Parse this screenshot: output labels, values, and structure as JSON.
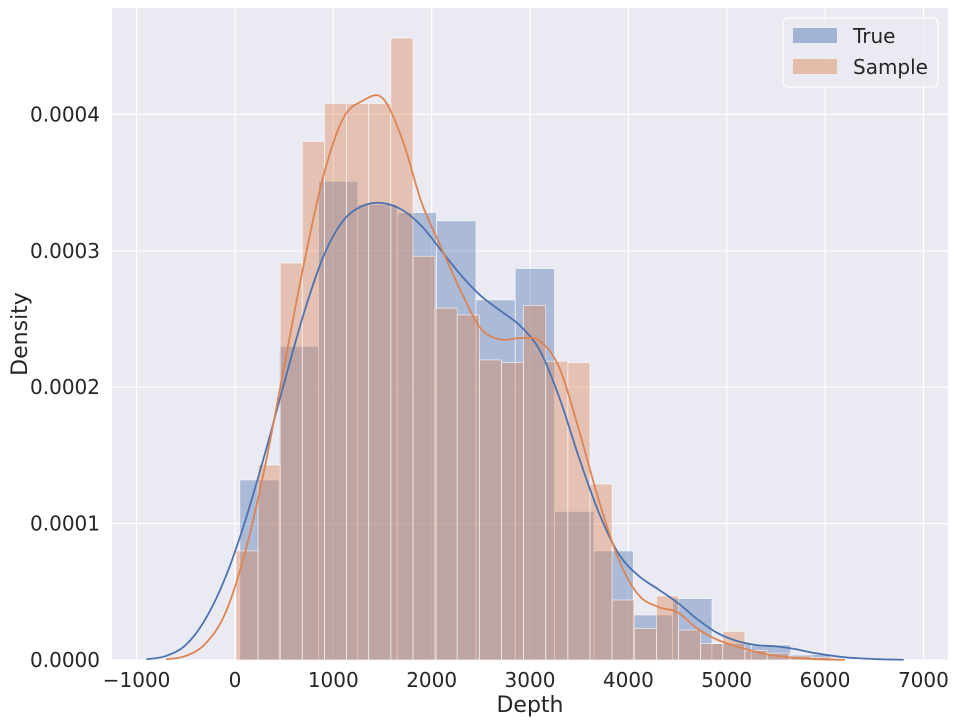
{
  "chart_data": {
    "type": "histogram",
    "xlabel": "Depth",
    "ylabel": "Density",
    "xlim": [
      -1250,
      7250
    ],
    "ylim": [
      0,
      0.000478
    ],
    "xticks": [
      -1000,
      0,
      1000,
      2000,
      3000,
      4000,
      5000,
      6000,
      7000
    ],
    "xtick_labels": [
      "−1000",
      "0",
      "1000",
      "2000",
      "3000",
      "4000",
      "5000",
      "6000",
      "7000"
    ],
    "yticks": [
      0,
      0.0001,
      0.0002,
      0.0003,
      0.0004
    ],
    "ytick_labels": [
      "0.0000",
      "0.0001",
      "0.0002",
      "0.0003",
      "0.0004"
    ],
    "grid": true,
    "legend_position": "top-right",
    "series": [
      {
        "name": "True",
        "color": "#4c72b0",
        "hist_alpha": 0.4,
        "bins": [
          {
            "x0": 50,
            "x1": 450,
            "y": 0.000132
          },
          {
            "x0": 450,
            "x1": 850,
            "y": 0.00023
          },
          {
            "x0": 850,
            "x1": 1250,
            "y": 0.000351
          },
          {
            "x0": 1250,
            "x1": 1650,
            "y": 0.000334
          },
          {
            "x0": 1650,
            "x1": 2050,
            "y": 0.000328
          },
          {
            "x0": 2050,
            "x1": 2450,
            "y": 0.000322
          },
          {
            "x0": 2450,
            "x1": 2850,
            "y": 0.000264
          },
          {
            "x0": 2850,
            "x1": 3250,
            "y": 0.000287
          },
          {
            "x0": 3250,
            "x1": 3650,
            "y": 0.000109
          },
          {
            "x0": 3650,
            "x1": 4050,
            "y": 8e-05
          },
          {
            "x0": 4050,
            "x1": 4450,
            "y": 3.3e-05
          },
          {
            "x0": 4450,
            "x1": 4850,
            "y": 4.5e-05
          },
          {
            "x0": 4850,
            "x1": 5250,
            "y": 1.2e-05
          },
          {
            "x0": 5250,
            "x1": 5650,
            "y": 1.1e-05
          },
          {
            "x0": 5650,
            "x1": 6050,
            "y": 4e-06
          }
        ],
        "kde": [
          [
            -900,
            5e-07
          ],
          [
            -700,
            3e-06
          ],
          [
            -500,
            1.1e-05
          ],
          [
            -300,
            3e-05
          ],
          [
            -100,
            6e-05
          ],
          [
            100,
            0.000101
          ],
          [
            300,
            0.00015
          ],
          [
            500,
            0.000203
          ],
          [
            700,
            0.000254
          ],
          [
            900,
            0.000296
          ],
          [
            1100,
            0.000322
          ],
          [
            1300,
            0.000333
          ],
          [
            1500,
            0.000335
          ],
          [
            1700,
            0.00033
          ],
          [
            1900,
            0.000318
          ],
          [
            2100,
            0.0003
          ],
          [
            2300,
            0.000282
          ],
          [
            2500,
            0.000267
          ],
          [
            2700,
            0.000256
          ],
          [
            2900,
            0.000245
          ],
          [
            3100,
            0.000227
          ],
          [
            3300,
            0.000192
          ],
          [
            3500,
            0.000148
          ],
          [
            3700,
            0.000108
          ],
          [
            3900,
            7.8e-05
          ],
          [
            4100,
            6.2e-05
          ],
          [
            4300,
            5.2e-05
          ],
          [
            4500,
            4.2e-05
          ],
          [
            4700,
            3e-05
          ],
          [
            4900,
            2e-05
          ],
          [
            5100,
            1.4e-05
          ],
          [
            5300,
            1.1e-05
          ],
          [
            5500,
            1e-05
          ],
          [
            5700,
            8e-06
          ],
          [
            5900,
            5e-06
          ],
          [
            6200,
            2e-06
          ],
          [
            6500,
            7e-07
          ],
          [
            6800,
            2e-07
          ]
        ]
      },
      {
        "name": "Sample",
        "color": "#dd8452",
        "hist_alpha": 0.4,
        "bins": [
          {
            "x0": 10,
            "x1": 235,
            "y": 8e-05
          },
          {
            "x0": 235,
            "x1": 460,
            "y": 0.000143
          },
          {
            "x0": 460,
            "x1": 685,
            "y": 0.000291
          },
          {
            "x0": 685,
            "x1": 910,
            "y": 0.00038
          },
          {
            "x0": 910,
            "x1": 1135,
            "y": 0.000408
          },
          {
            "x0": 1135,
            "x1": 1360,
            "y": 0.000408
          },
          {
            "x0": 1360,
            "x1": 1585,
            "y": 0.000408
          },
          {
            "x0": 1585,
            "x1": 1810,
            "y": 0.000456
          },
          {
            "x0": 1810,
            "x1": 2035,
            "y": 0.000296
          },
          {
            "x0": 2035,
            "x1": 2260,
            "y": 0.000258
          },
          {
            "x0": 2260,
            "x1": 2485,
            "y": 0.000253
          },
          {
            "x0": 2485,
            "x1": 2710,
            "y": 0.00022
          },
          {
            "x0": 2710,
            "x1": 2935,
            "y": 0.000218
          },
          {
            "x0": 2935,
            "x1": 3160,
            "y": 0.00026
          },
          {
            "x0": 3160,
            "x1": 3385,
            "y": 0.000219
          },
          {
            "x0": 3385,
            "x1": 3610,
            "y": 0.000218
          },
          {
            "x0": 3610,
            "x1": 3835,
            "y": 0.000129
          },
          {
            "x0": 3835,
            "x1": 4060,
            "y": 4.4e-05
          },
          {
            "x0": 4060,
            "x1": 4285,
            "y": 2.3e-05
          },
          {
            "x0": 4285,
            "x1": 4510,
            "y": 4.7e-05
          },
          {
            "x0": 4510,
            "x1": 4735,
            "y": 2.2e-05
          },
          {
            "x0": 4735,
            "x1": 4960,
            "y": 1.2e-05
          },
          {
            "x0": 4960,
            "x1": 5185,
            "y": 2.1e-05
          },
          {
            "x0": 5185,
            "x1": 5410,
            "y": 7e-06
          },
          {
            "x0": 5410,
            "x1": 5635,
            "y": 5e-06
          },
          {
            "x0": 5635,
            "x1": 5860,
            "y": 3e-06
          },
          {
            "x0": 5860,
            "x1": 6085,
            "y": 2e-06
          }
        ],
        "kde": [
          [
            -700,
            5e-07
          ],
          [
            -500,
            3e-06
          ],
          [
            -300,
            1.2e-05
          ],
          [
            -100,
            3.4e-05
          ],
          [
            100,
            7.8e-05
          ],
          [
            300,
            0.00014
          ],
          [
            500,
            0.000215
          ],
          [
            700,
            0.00029
          ],
          [
            900,
            0.000355
          ],
          [
            1100,
            0.000397
          ],
          [
            1300,
            0.00041
          ],
          [
            1500,
            0.000412
          ],
          [
            1700,
            0.000382
          ],
          [
            1900,
            0.000335
          ],
          [
            2100,
            0.000302
          ],
          [
            2300,
            0.00027
          ],
          [
            2500,
            0.000243
          ],
          [
            2700,
            0.000235
          ],
          [
            2900,
            0.000236
          ],
          [
            3100,
            0.000234
          ],
          [
            3300,
            0.000214
          ],
          [
            3500,
            0.000168
          ],
          [
            3700,
            0.000117
          ],
          [
            3900,
            7.4e-05
          ],
          [
            4100,
            4.8e-05
          ],
          [
            4300,
            3.9e-05
          ],
          [
            4500,
            3.5e-05
          ],
          [
            4700,
            2.3e-05
          ],
          [
            4900,
            1.5e-05
          ],
          [
            5100,
            1e-05
          ],
          [
            5300,
            6e-06
          ],
          [
            5500,
            3e-06
          ],
          [
            5700,
            1.5e-06
          ],
          [
            5900,
            6e-07
          ],
          [
            6200,
            1e-07
          ]
        ]
      }
    ]
  }
}
